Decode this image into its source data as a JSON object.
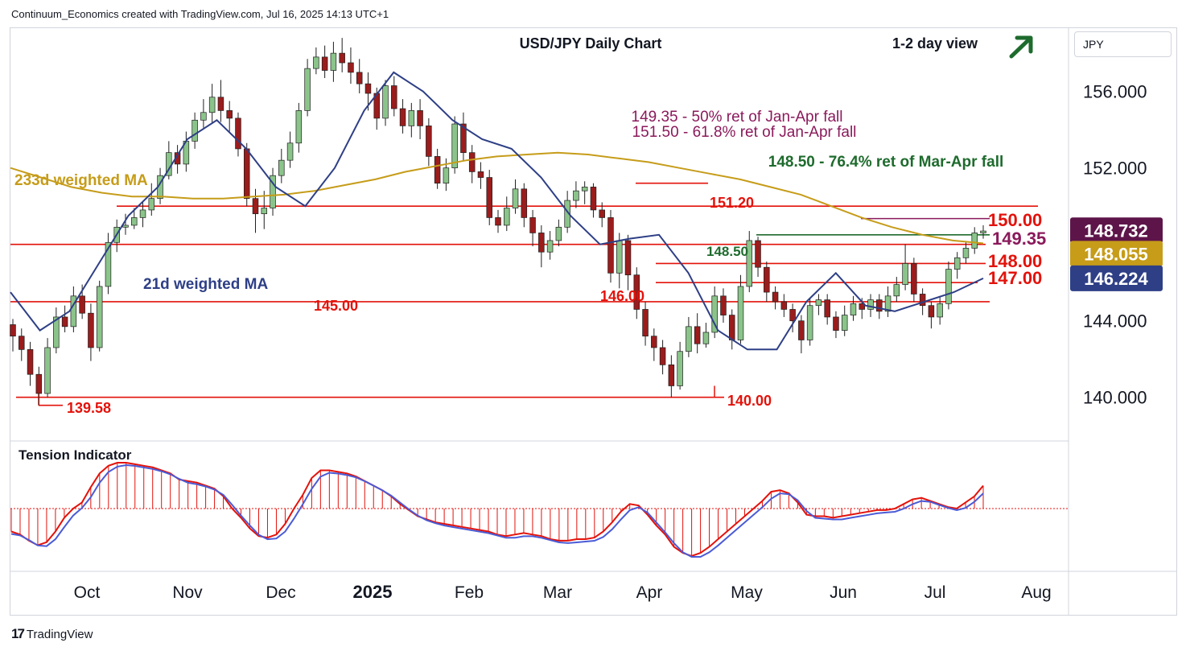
{
  "header": {
    "credit": "Continuum_Economics created with TradingView.com, Jul 16, 2025 14:13 UTC+1"
  },
  "footer": {
    "brand": "TradingView",
    "logo_icon": "tradingview-logo-icon"
  },
  "currency_selector": {
    "value": "JPY"
  },
  "chart_data": {
    "type": "candlestick",
    "title": "USD/JPY Daily Chart",
    "subtitle": "1-2 day view",
    "outlook_icon": "up-right-arrow-icon",
    "outlook_color": "#1e6b2d",
    "x_axis": {
      "ticks": [
        "Oct",
        "Nov",
        "Dec",
        "2025",
        "Feb",
        "Mar",
        "Apr",
        "May",
        "Jun",
        "Jul",
        "Aug"
      ]
    },
    "y_axis": {
      "ticks": [
        "156.000",
        "152.000",
        "144.000",
        "140.000"
      ],
      "scale": "linear",
      "range": [
        137.8,
        159.1
      ]
    },
    "price_badges": [
      {
        "label": "148.732",
        "value": 148.732,
        "bg": "#5d1549",
        "fg": "#ffffff"
      },
      {
        "label": "148.055",
        "value": 148.055,
        "bg": "#c69c19",
        "fg": "#ffffff"
      },
      {
        "label": "146.224",
        "value": 146.224,
        "bg": "#2e3f86",
        "fg": "#ffffff"
      }
    ],
    "horizontal_levels": [
      {
        "label": "150.00",
        "value": 150.0,
        "color": "#e3120b"
      },
      {
        "label": "149.35",
        "value": 149.35,
        "color": "#8a1a5b"
      },
      {
        "label": "148.50",
        "value": 148.5,
        "color": "#1e6b2d"
      },
      {
        "label": "148.00",
        "value": 148.0,
        "color": "#e3120b"
      },
      {
        "label": "147.00",
        "value": 147.0,
        "color": "#e3120b"
      },
      {
        "label": "146.00",
        "value": 146.0,
        "color": "#e3120b"
      },
      {
        "label": "145.00",
        "value": 145.0,
        "color": "#e3120b"
      },
      {
        "label": "151.20",
        "value": 151.2,
        "color": "#e3120b"
      },
      {
        "label": "140.00",
        "value": 140.0,
        "color": "#e3120b"
      },
      {
        "label": "139.58",
        "value": 139.58,
        "color": "#e3120b"
      }
    ],
    "annotations": [
      {
        "text": "149.35 - 50% ret of Jan-Apr fall",
        "color": "#8a1a5b"
      },
      {
        "text": "151.50 - 61.8% ret of Jan-Apr fall",
        "color": "#8a1a5b"
      },
      {
        "text": "148.50 - 76.4% ret of Mar-Apr fall",
        "color": "#1e6b2d"
      }
    ],
    "series": [
      {
        "name": "233d weighted MA",
        "color": "#c69c19",
        "values": [
          152.0,
          151.5,
          151.0,
          150.7,
          150.5,
          150.5,
          150.4,
          150.4,
          150.5,
          150.6,
          150.8,
          151.1,
          151.4,
          151.8,
          152.1,
          152.4,
          152.6,
          152.7,
          152.8,
          152.7,
          152.5,
          152.3,
          152.0,
          151.7,
          151.4,
          151.0,
          150.6,
          150.0,
          149.4,
          148.9,
          148.5,
          148.2,
          148.055
        ]
      },
      {
        "name": "21d weighted MA",
        "color": "#2e3f86",
        "values": [
          145.5,
          143.5,
          144.5,
          147.0,
          149.5,
          151.0,
          153.5,
          154.5,
          153.0,
          151.0,
          150.0,
          152.0,
          155.0,
          157.0,
          156.0,
          154.5,
          153.5,
          153.0,
          151.5,
          149.5,
          148.0,
          148.3,
          148.5,
          146.5,
          143.5,
          142.5,
          142.5,
          145.0,
          146.5,
          144.8,
          144.5,
          145.0,
          145.5,
          146.224
        ]
      },
      {
        "name": "Tension Indicator",
        "color": "#e3120b"
      }
    ],
    "candles": [
      [
        143.8,
        143.2,
        144.1,
        142.4
      ],
      [
        143.2,
        142.5,
        143.6,
        141.9
      ],
      [
        142.5,
        141.2,
        142.9,
        140.6
      ],
      [
        141.2,
        140.2,
        141.6,
        139.6
      ],
      [
        140.2,
        142.6,
        143.1,
        140.0
      ],
      [
        142.6,
        144.2,
        144.7,
        142.3
      ],
      [
        144.2,
        143.7,
        144.8,
        143.4
      ],
      [
        143.7,
        145.3,
        145.8,
        143.4
      ],
      [
        145.3,
        144.4,
        145.9,
        144.1
      ],
      [
        144.4,
        142.6,
        144.9,
        141.9
      ],
      [
        142.6,
        145.8,
        146.1,
        142.4
      ],
      [
        145.8,
        148.1,
        148.6,
        145.4
      ],
      [
        148.1,
        148.9,
        149.3,
        147.6
      ],
      [
        148.9,
        149.0,
        149.6,
        148.5
      ],
      [
        149.0,
        149.4,
        149.9,
        148.8
      ],
      [
        149.4,
        149.8,
        150.2,
        148.9
      ],
      [
        149.8,
        150.4,
        151.2,
        149.5
      ],
      [
        150.4,
        151.6,
        152.0,
        150.1
      ],
      [
        151.6,
        152.8,
        153.4,
        151.4
      ],
      [
        152.8,
        152.2,
        153.2,
        151.7
      ],
      [
        152.2,
        153.4,
        153.9,
        151.8
      ],
      [
        153.4,
        154.5,
        154.9,
        153.0
      ],
      [
        154.5,
        154.9,
        155.6,
        154.1
      ],
      [
        154.9,
        155.7,
        156.4,
        154.3
      ],
      [
        155.7,
        155.0,
        156.6,
        154.4
      ],
      [
        155.0,
        154.6,
        155.5,
        153.9
      ],
      [
        154.6,
        153.0,
        154.9,
        152.6
      ],
      [
        153.0,
        150.4,
        153.3,
        150.0
      ],
      [
        150.4,
        149.6,
        150.9,
        148.6
      ],
      [
        149.6,
        149.9,
        150.8,
        148.8
      ],
      [
        149.9,
        151.6,
        152.0,
        149.5
      ],
      [
        151.6,
        152.4,
        153.0,
        151.2
      ],
      [
        152.4,
        153.3,
        153.9,
        152.0
      ],
      [
        153.3,
        155.0,
        155.4,
        152.8
      ],
      [
        155.0,
        157.2,
        157.7,
        154.7
      ],
      [
        157.2,
        157.8,
        158.3,
        156.9
      ],
      [
        157.8,
        157.1,
        158.4,
        156.7
      ],
      [
        157.1,
        158.0,
        158.6,
        156.5
      ],
      [
        158.0,
        157.5,
        158.8,
        157.0
      ],
      [
        157.5,
        157.0,
        158.3,
        156.4
      ],
      [
        157.0,
        156.4,
        157.7,
        155.9
      ],
      [
        156.4,
        155.9,
        157.0,
        155.0
      ],
      [
        155.9,
        154.6,
        156.2,
        154.0
      ],
      [
        154.6,
        156.3,
        156.6,
        154.2
      ],
      [
        156.3,
        155.1,
        156.8,
        154.7
      ],
      [
        155.1,
        154.2,
        155.6,
        153.8
      ],
      [
        154.2,
        155.0,
        155.4,
        153.6
      ],
      [
        155.0,
        154.2,
        155.6,
        153.5
      ],
      [
        154.2,
        152.6,
        154.6,
        152.1
      ],
      [
        152.6,
        151.2,
        153.0,
        150.9
      ],
      [
        151.2,
        152.0,
        152.5,
        150.8
      ],
      [
        152.0,
        154.3,
        154.7,
        151.7
      ],
      [
        154.3,
        152.8,
        154.9,
        152.4
      ],
      [
        152.8,
        151.8,
        153.2,
        151.2
      ],
      [
        151.8,
        151.5,
        152.3,
        150.9
      ],
      [
        151.5,
        149.4,
        151.9,
        149.0
      ],
      [
        149.4,
        149.0,
        149.8,
        148.6
      ],
      [
        149.0,
        149.9,
        150.5,
        148.7
      ],
      [
        149.9,
        150.9,
        151.4,
        149.6
      ],
      [
        150.9,
        149.4,
        151.2,
        148.9
      ],
      [
        149.4,
        148.6,
        149.8,
        147.9
      ],
      [
        148.6,
        147.6,
        149.0,
        146.8
      ],
      [
        147.6,
        148.2,
        148.7,
        147.2
      ],
      [
        148.2,
        148.9,
        149.3,
        147.9
      ],
      [
        148.9,
        150.3,
        150.8,
        148.6
      ],
      [
        150.3,
        150.8,
        151.3,
        149.9
      ],
      [
        150.8,
        151.0,
        151.3,
        150.1
      ],
      [
        151.0,
        149.8,
        151.2,
        149.4
      ],
      [
        149.8,
        149.4,
        150.2,
        148.9
      ],
      [
        149.4,
        146.5,
        149.8,
        146.0
      ],
      [
        146.5,
        148.2,
        148.6,
        145.7
      ],
      [
        148.2,
        146.4,
        148.5,
        145.6
      ],
      [
        146.4,
        144.6,
        146.8,
        144.1
      ],
      [
        144.6,
        143.2,
        145.0,
        142.7
      ],
      [
        143.2,
        142.6,
        143.6,
        141.9
      ],
      [
        142.6,
        141.7,
        143.0,
        141.2
      ],
      [
        141.7,
        140.6,
        142.2,
        140.0
      ],
      [
        140.6,
        142.4,
        142.9,
        140.4
      ],
      [
        142.4,
        143.7,
        144.2,
        142.1
      ],
      [
        143.7,
        142.8,
        144.4,
        142.3
      ],
      [
        142.8,
        143.4,
        143.9,
        142.6
      ],
      [
        143.4,
        145.3,
        145.8,
        143.1
      ],
      [
        145.3,
        144.3,
        145.7,
        143.9
      ],
      [
        144.3,
        143.0,
        144.6,
        142.5
      ],
      [
        143.0,
        145.8,
        146.4,
        142.8
      ],
      [
        145.8,
        148.2,
        148.7,
        145.5
      ],
      [
        148.2,
        146.8,
        148.4,
        146.3
      ],
      [
        146.8,
        145.5,
        147.1,
        145.0
      ],
      [
        145.5,
        145.0,
        145.8,
        144.6
      ],
      [
        145.0,
        144.6,
        145.4,
        144.2
      ],
      [
        144.6,
        144.0,
        144.9,
        143.4
      ],
      [
        144.0,
        143.0,
        144.3,
        142.3
      ],
      [
        143.0,
        144.8,
        145.2,
        142.7
      ],
      [
        144.8,
        145.1,
        145.4,
        144.3
      ],
      [
        145.1,
        144.2,
        145.4,
        143.8
      ],
      [
        144.2,
        143.5,
        144.5,
        143.1
      ],
      [
        143.5,
        144.3,
        144.8,
        143.2
      ],
      [
        144.3,
        144.9,
        145.3,
        144.0
      ],
      [
        144.9,
        144.6,
        145.2,
        144.1
      ],
      [
        144.6,
        145.1,
        145.4,
        144.2
      ],
      [
        145.1,
        144.5,
        145.4,
        144.1
      ],
      [
        144.5,
        145.3,
        145.8,
        144.2
      ],
      [
        145.3,
        145.9,
        146.3,
        145.0
      ],
      [
        145.9,
        147.0,
        148.0,
        145.6
      ],
      [
        147.0,
        145.4,
        147.3,
        145.0
      ],
      [
        145.4,
        144.8,
        145.7,
        144.3
      ],
      [
        144.8,
        144.2,
        145.0,
        143.6
      ],
      [
        144.2,
        144.9,
        145.3,
        143.8
      ],
      [
        144.9,
        146.7,
        147.1,
        144.6
      ],
      [
        146.7,
        147.3,
        147.6,
        146.2
      ],
      [
        147.3,
        147.8,
        148.1,
        147.0
      ],
      [
        147.8,
        148.6,
        148.9,
        147.5
      ],
      [
        148.6,
        148.7,
        149.0,
        148.3
      ]
    ]
  }
}
